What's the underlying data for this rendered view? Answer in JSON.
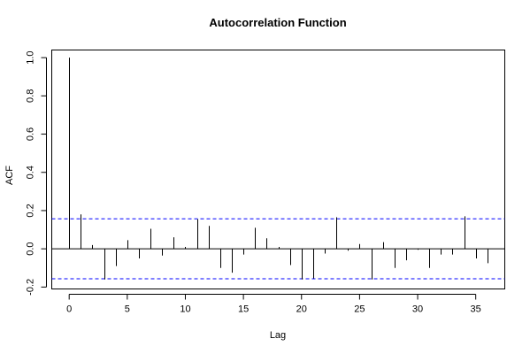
{
  "chart_data": {
    "type": "bar",
    "title": "Autocorrelation Function",
    "xlabel": "Lag",
    "ylabel": "ACF",
    "xlim": [
      -1.5,
      37.5
    ],
    "ylim": [
      -0.21,
      1.04
    ],
    "x_ticks": [
      0,
      5,
      10,
      15,
      20,
      25,
      30,
      35
    ],
    "y_ticks": [
      -0.2,
      0.0,
      0.2,
      0.4,
      0.6,
      0.8,
      1.0
    ],
    "x_tick_labels": [
      "0",
      "5",
      "10",
      "15",
      "20",
      "25",
      "30",
      "35"
    ],
    "y_tick_labels": [
      "-0.2",
      "0.0",
      "0.2",
      "0.4",
      "0.6",
      "0.8",
      "1.0"
    ],
    "lags": [
      0,
      1,
      2,
      3,
      4,
      5,
      6,
      7,
      8,
      9,
      10,
      11,
      12,
      13,
      14,
      15,
      16,
      17,
      18,
      19,
      20,
      21,
      22,
      23,
      24,
      25,
      26,
      27,
      28,
      29,
      30,
      31,
      32,
      33,
      34,
      35,
      36
    ],
    "values": [
      1.0,
      0.18,
      0.02,
      -0.16,
      -0.09,
      0.045,
      -0.05,
      0.105,
      -0.035,
      0.06,
      0.01,
      0.155,
      0.12,
      -0.1,
      -0.125,
      -0.03,
      0.11,
      0.055,
      0.01,
      -0.085,
      -0.16,
      -0.155,
      -0.025,
      0.165,
      -0.01,
      0.025,
      -0.16,
      0.035,
      -0.1,
      -0.06,
      -0.005,
      -0.1,
      -0.03,
      -0.03,
      0.17,
      -0.05,
      -0.075
    ],
    "confidence_bounds": [
      0.157,
      -0.157
    ],
    "confidence_color": "#0000ff",
    "zero_line": true,
    "grid": false
  }
}
